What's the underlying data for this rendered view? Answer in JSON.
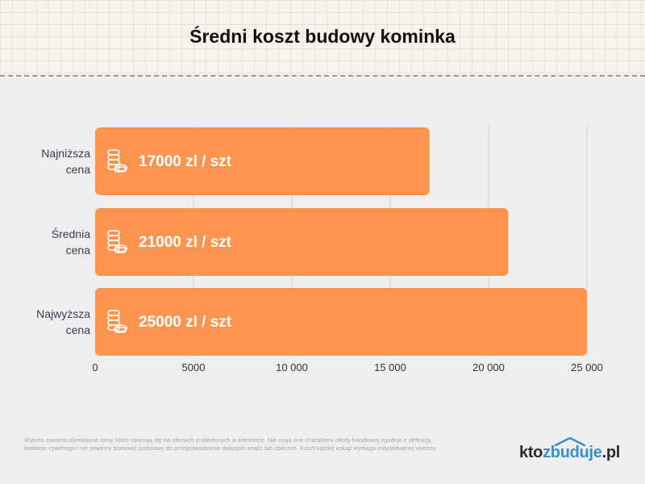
{
  "page_title": "Średni koszt budowy kominka",
  "chart_data": {
    "type": "bar",
    "orientation": "horizontal",
    "title": "Średni koszt budowy kominka",
    "categories": [
      "Najniższa cena",
      "Średnia cena",
      "Najwyższa cena"
    ],
    "category_lines": [
      [
        "Najniższa",
        "cena"
      ],
      [
        "Średnia",
        "cena"
      ],
      [
        "Najwyższa",
        "cena"
      ]
    ],
    "values": [
      17000,
      21000,
      25000
    ],
    "data_labels": [
      "17000 zl / szt",
      "21000 zl / szt",
      "25000 zl / szt"
    ],
    "xlim": [
      0,
      25000
    ],
    "x_ticks": [
      0,
      5000,
      10000,
      15000,
      20000,
      25000
    ],
    "x_tick_labels": [
      "0",
      "5000",
      "10 000",
      "15 000",
      "20 000",
      "25 000"
    ],
    "grid": true,
    "bar_color": "#fd9550",
    "grid_color": "#d0d0d0",
    "label_color": "#3d3755",
    "icon": "coin-stack-icon"
  },
  "footnote": "Wykres zawiera uśrednione ceny, które opierają się na ofertach znalezionych w internecie. Nie mają one charakteru oferty handlowej zgodnie z definicją kodeksu cywilnego i nie powinny stanowić podstawy do przeprowadzania dalszych analiz lub obliczeń. Koszt każdej usługi wymaga indywidualnej wyceny.",
  "logo": {
    "part1": "kto",
    "part2": "zbuduje",
    "part3": ".pl",
    "accent_color": "#3a8fc9"
  }
}
